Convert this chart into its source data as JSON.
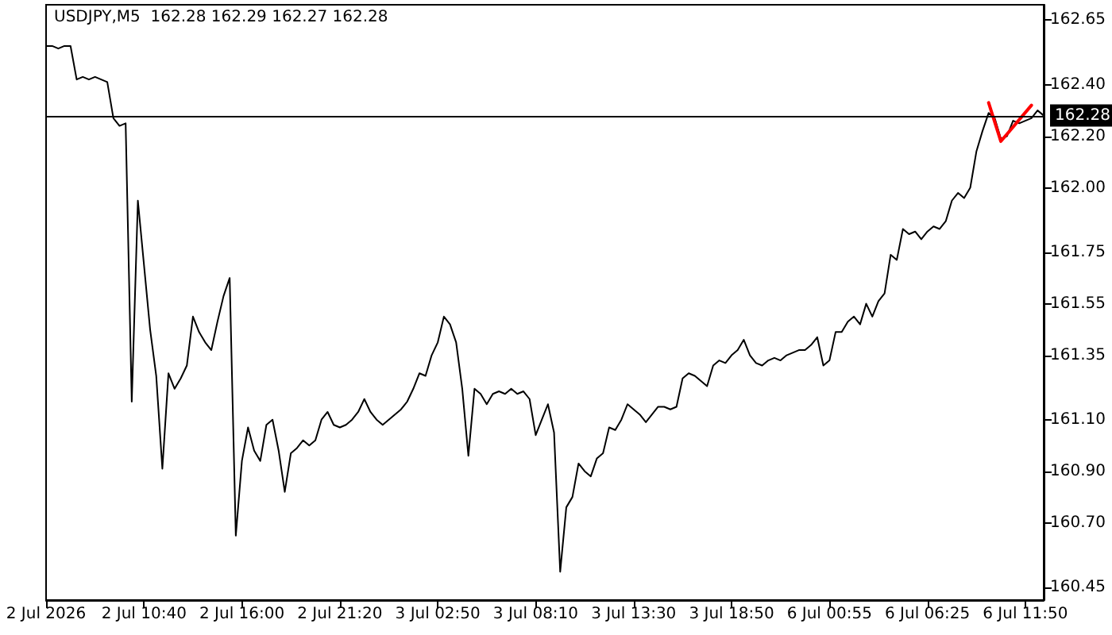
{
  "chart_data": {
    "type": "line",
    "title": "USDJPY,M5  162.28 162.29 162.27 162.28",
    "categories": [
      "2 Jul 2026",
      null,
      null,
      null,
      null,
      null,
      null,
      null,
      null,
      null,
      null,
      null,
      null,
      null,
      null,
      null,
      "2 Jul 10:40",
      null,
      null,
      null,
      null,
      null,
      null,
      null,
      null,
      null,
      null,
      null,
      null,
      null,
      null,
      null,
      "2 Jul 16:00",
      null,
      null,
      null,
      null,
      null,
      null,
      null,
      null,
      null,
      null,
      null,
      null,
      null,
      null,
      null,
      "2 Jul 21:20",
      null,
      null,
      null,
      null,
      null,
      null,
      null,
      null,
      null,
      null,
      null,
      null,
      null,
      null,
      null,
      "3 Jul 02:50",
      null,
      null,
      null,
      null,
      null,
      null,
      null,
      null,
      null,
      null,
      null,
      null,
      null,
      null,
      null,
      "3 Jul 08:10",
      null,
      null,
      null,
      null,
      null,
      null,
      null,
      null,
      null,
      null,
      null,
      null,
      null,
      null,
      null,
      "3 Jul 13:30",
      null,
      null,
      null,
      null,
      null,
      null,
      null,
      null,
      null,
      null,
      null,
      null,
      null,
      null,
      null,
      "3 Jul 18:50",
      null,
      null,
      null,
      null,
      null,
      null,
      null,
      null,
      null,
      null,
      null,
      null,
      null,
      null,
      null,
      "6 Jul 00:55",
      null,
      null,
      null,
      null,
      null,
      null,
      null,
      null,
      null,
      null,
      null,
      null,
      null,
      null,
      null,
      "6 Jul 06:25",
      null,
      null,
      null,
      null,
      null,
      null,
      null,
      null,
      null,
      null,
      null,
      null,
      null,
      null,
      null,
      "6 Jul 11:50",
      null,
      null,
      null
    ],
    "series": [
      {
        "color": "#000000",
        "values": [
          162.55,
          162.55,
          162.54,
          162.55,
          162.55,
          162.42,
          162.43,
          162.42,
          162.43,
          162.42,
          162.41,
          162.27,
          162.24,
          162.25,
          161.17,
          161.95,
          161.7,
          161.45,
          161.27,
          160.91,
          161.28,
          161.22,
          161.26,
          161.31,
          161.5,
          161.44,
          161.4,
          161.37,
          161.48,
          161.58,
          161.65,
          160.65,
          160.94,
          161.07,
          160.98,
          160.94,
          161.08,
          161.1,
          160.98,
          160.82,
          160.97,
          160.99,
          161.02,
          161.0,
          161.02,
          161.1,
          161.13,
          161.08,
          161.07,
          161.08,
          161.1,
          161.13,
          161.18,
          161.13,
          161.1,
          161.08,
          161.1,
          161.12,
          161.14,
          161.17,
          161.22,
          161.28,
          161.27,
          161.35,
          161.4,
          161.5,
          161.47,
          161.4,
          161.22,
          160.96,
          161.22,
          161.2,
          161.16,
          161.2,
          161.21,
          161.2,
          161.22,
          161.2,
          161.21,
          161.18,
          161.04,
          161.1,
          161.16,
          161.05,
          160.51,
          160.76,
          160.8,
          160.93,
          160.9,
          160.88,
          160.95,
          160.97,
          161.07,
          161.06,
          161.1,
          161.16,
          161.14,
          161.12,
          161.09,
          161.12,
          161.15,
          161.15,
          161.14,
          161.15,
          161.26,
          161.28,
          161.27,
          161.25,
          161.23,
          161.31,
          161.33,
          161.32,
          161.35,
          161.37,
          161.41,
          161.35,
          161.32,
          161.31,
          161.33,
          161.34,
          161.33,
          161.35,
          161.36,
          161.37,
          161.37,
          161.39,
          161.42,
          161.31,
          161.33,
          161.44,
          161.44,
          161.48,
          161.5,
          161.47,
          161.55,
          161.5,
          161.56,
          161.59,
          161.74,
          161.72,
          161.84,
          161.82,
          161.83,
          161.8,
          161.83,
          161.85,
          161.84,
          161.87,
          161.95,
          161.98,
          161.96,
          162.0,
          162.14,
          162.22,
          162.29,
          162.27,
          162.19,
          162.2,
          162.26,
          162.25,
          162.26,
          162.27,
          162.3,
          162.28
        ]
      },
      {
        "color": "#ff0000",
        "values": [
          null,
          null,
          null,
          null,
          null,
          null,
          null,
          null,
          null,
          null,
          null,
          null,
          null,
          null,
          null,
          null,
          null,
          null,
          null,
          null,
          null,
          null,
          null,
          null,
          null,
          null,
          null,
          null,
          null,
          null,
          null,
          null,
          null,
          null,
          null,
          null,
          null,
          null,
          null,
          null,
          null,
          null,
          null,
          null,
          null,
          null,
          null,
          null,
          null,
          null,
          null,
          null,
          null,
          null,
          null,
          null,
          null,
          null,
          null,
          null,
          null,
          null,
          null,
          null,
          null,
          null,
          null,
          null,
          null,
          null,
          null,
          null,
          null,
          null,
          null,
          null,
          null,
          null,
          null,
          null,
          null,
          null,
          null,
          null,
          null,
          null,
          null,
          null,
          null,
          null,
          null,
          null,
          null,
          null,
          null,
          null,
          null,
          null,
          null,
          null,
          null,
          null,
          null,
          null,
          null,
          null,
          null,
          null,
          null,
          null,
          null,
          null,
          null,
          null,
          null,
          null,
          null,
          null,
          null,
          null,
          null,
          null,
          null,
          null,
          null,
          null,
          null,
          null,
          null,
          null,
          null,
          null,
          null,
          null,
          null,
          null,
          null,
          null,
          null,
          null,
          null,
          null,
          null,
          null,
          null,
          null,
          null,
          null,
          null,
          null,
          null,
          null,
          null,
          null,
          162.33,
          null,
          162.18,
          null,
          null,
          null,
          null,
          162.32,
          null,
          null
        ]
      }
    ],
    "ylim": [
      160.4,
      162.71
    ],
    "yticks": [
      160.45,
      {
        "value": 160.7,
        "label": "160.70"
      },
      {
        "value": 160.9,
        "label": "160.90"
      },
      {
        "value": 161.1,
        "label": "161.10"
      },
      161.35,
      161.55,
      161.75,
      {
        "value": 162.0,
        "label": "162.00"
      },
      {
        "value": 162.2,
        "label": "162.20"
      },
      {
        "value": 162.4,
        "label": "162.40"
      },
      162.65
    ],
    "ref_lines": [
      {
        "axis": "y",
        "value": 162.28,
        "label": "162.28",
        "color": "#000000"
      }
    ],
    "grid": false,
    "marker": "none",
    "line_style": "solid"
  }
}
